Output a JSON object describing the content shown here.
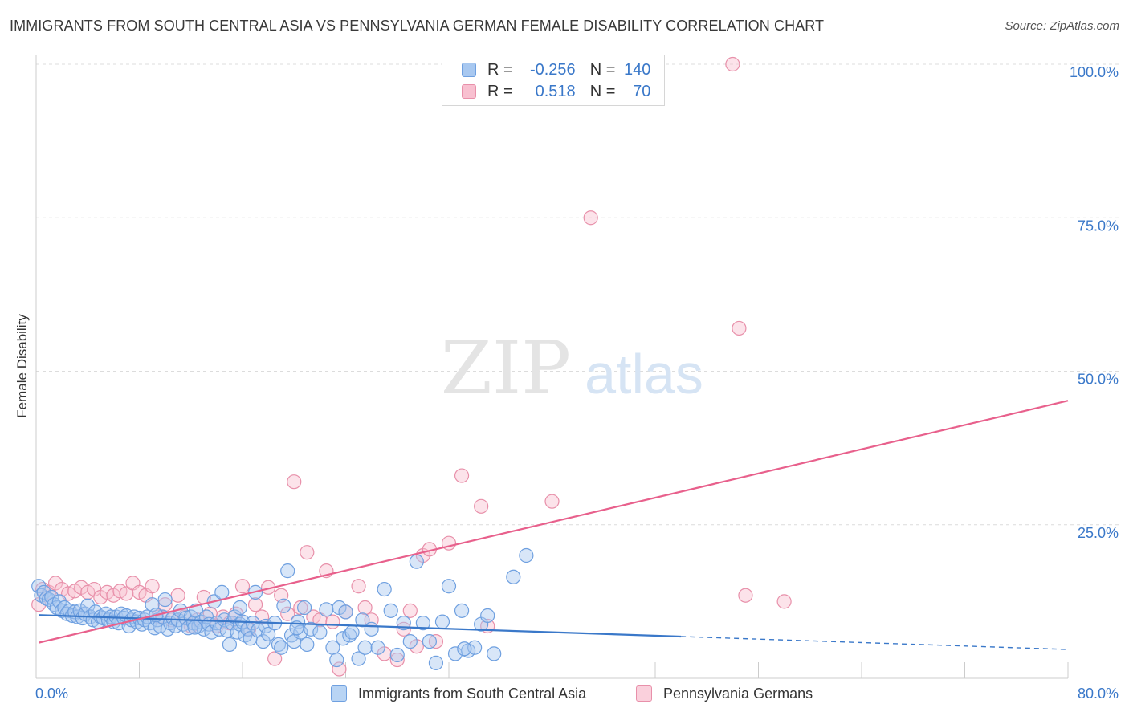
{
  "header": {
    "title": "IMMIGRANTS FROM SOUTH CENTRAL ASIA VS PENNSYLVANIA GERMAN FEMALE DISABILITY CORRELATION CHART",
    "source": "Source: ZipAtlas.com"
  },
  "watermark": {
    "zip": "ZIP",
    "atlas": "atlas"
  },
  "legend": {
    "r_label": "R =",
    "n_label": "N =",
    "rows": [
      {
        "r": "-0.256",
        "n": "140",
        "color": "#a8c8f0",
        "border": "#6fa0e0"
      },
      {
        "r": "0.518",
        "n": "70",
        "color": "#f8c0d0",
        "border": "#e890aa"
      }
    ]
  },
  "bottom_legend": [
    {
      "label": "Immigrants from South Central Asia",
      "color": "#b8d4f4",
      "border": "#6fa0e0"
    },
    {
      "label": "Pennsylvania Germans",
      "color": "#fad0dc",
      "border": "#e890aa"
    }
  ],
  "chart_data": {
    "type": "scatter",
    "ylabel": "Female Disability",
    "xlim": [
      0,
      80
    ],
    "ylim": [
      0,
      100
    ],
    "x_ticks": [
      {
        "value": 0,
        "label": "0.0%"
      },
      {
        "value": 80,
        "label": "80.0%"
      }
    ],
    "y_ticks": [
      {
        "value": 25,
        "label": "25.0%"
      },
      {
        "value": 50,
        "label": "50.0%"
      },
      {
        "value": 75,
        "label": "75.0%"
      },
      {
        "value": 100,
        "label": "100.0%"
      }
    ],
    "grid": "horizontal dashed",
    "colors": {
      "blue": "#3a78c9",
      "pink": "#e8608c",
      "tick_label": "#3a78c9"
    },
    "series": [
      {
        "name": "Immigrants from South Central Asia",
        "color": "#7aa8e8",
        "trend": {
          "x0": 0.2,
          "y0": 10.3,
          "x1": 50,
          "y1": 6.8,
          "dashed_to_x": 80,
          "dashed_to_y": 4.7
        },
        "points": [
          [
            0.2,
            15
          ],
          [
            0.4,
            13.5
          ],
          [
            0.6,
            14
          ],
          [
            0.8,
            13
          ],
          [
            1,
            12.8
          ],
          [
            1.2,
            13.2
          ],
          [
            1.4,
            12
          ],
          [
            1.6,
            11.5
          ],
          [
            1.8,
            12.5
          ],
          [
            2,
            11
          ],
          [
            2.2,
            11.5
          ],
          [
            2.4,
            10.5
          ],
          [
            2.6,
            11
          ],
          [
            2.8,
            10.2
          ],
          [
            3,
            10.8
          ],
          [
            3.2,
            10
          ],
          [
            3.4,
            11
          ],
          [
            3.6,
            9.8
          ],
          [
            3.8,
            10.5
          ],
          [
            4,
            11.8
          ],
          [
            4.2,
            10
          ],
          [
            4.4,
            9.5
          ],
          [
            4.6,
            10.8
          ],
          [
            4.8,
            9.2
          ],
          [
            5,
            10
          ],
          [
            5.2,
            9.8
          ],
          [
            5.4,
            10.5
          ],
          [
            5.6,
            9.5
          ],
          [
            5.8,
            10
          ],
          [
            6,
            9.2
          ],
          [
            6.2,
            10
          ],
          [
            6.4,
            9
          ],
          [
            6.6,
            10.5
          ],
          [
            6.8,
            9.8
          ],
          [
            7,
            10.2
          ],
          [
            7.2,
            8.5
          ],
          [
            7.4,
            9.5
          ],
          [
            7.6,
            10
          ],
          [
            7.8,
            9.2
          ],
          [
            8,
            9.8
          ],
          [
            8.2,
            8.8
          ],
          [
            8.4,
            9.5
          ],
          [
            8.6,
            10
          ],
          [
            8.8,
            9
          ],
          [
            9,
            12
          ],
          [
            9.2,
            8.2
          ],
          [
            9.4,
            9.5
          ],
          [
            9.6,
            8.5
          ],
          [
            9.8,
            10
          ],
          [
            10,
            12.8
          ],
          [
            10.2,
            8
          ],
          [
            10.4,
            9
          ],
          [
            10.6,
            9.8
          ],
          [
            10.8,
            8.5
          ],
          [
            11,
            9.5
          ],
          [
            11.2,
            11
          ],
          [
            11.4,
            8.8
          ],
          [
            11.6,
            9.8
          ],
          [
            11.8,
            8.2
          ],
          [
            12,
            10
          ],
          [
            12.2,
            9
          ],
          [
            12.4,
            11
          ],
          [
            12.6,
            8.5
          ],
          [
            12.8,
            9.2
          ],
          [
            13,
            8
          ],
          [
            13.2,
            10
          ],
          [
            13.4,
            8.8
          ],
          [
            13.6,
            7.5
          ],
          [
            13.8,
            12.5
          ],
          [
            14,
            9
          ],
          [
            14.2,
            8
          ],
          [
            14.4,
            14
          ],
          [
            14.6,
            9.5
          ],
          [
            14.8,
            7.8
          ],
          [
            15,
            5.5
          ],
          [
            15.2,
            9
          ],
          [
            15.4,
            10
          ],
          [
            15.6,
            7.5
          ],
          [
            15.8,
            8.8
          ],
          [
            16,
            9.2
          ],
          [
            16.2,
            7
          ],
          [
            16.4,
            8
          ],
          [
            16.6,
            6.5
          ],
          [
            16.8,
            9
          ],
          [
            17,
            14
          ],
          [
            17.2,
            7.8
          ],
          [
            17.6,
            6
          ],
          [
            17.8,
            8.5
          ],
          [
            18,
            7.2
          ],
          [
            18.5,
            9
          ],
          [
            18.8,
            5.5
          ],
          [
            19,
            5
          ],
          [
            19.2,
            11.8
          ],
          [
            19.5,
            17.5
          ],
          [
            19.8,
            7
          ],
          [
            20,
            6
          ],
          [
            20.3,
            9.2
          ],
          [
            20.5,
            7.5
          ],
          [
            20.8,
            11.5
          ],
          [
            21,
            5.5
          ],
          [
            21.3,
            8
          ],
          [
            22,
            7.5
          ],
          [
            22.5,
            11.2
          ],
          [
            23,
            5
          ],
          [
            23.3,
            3
          ],
          [
            23.5,
            11.5
          ],
          [
            23.8,
            6.5
          ],
          [
            24,
            10.8
          ],
          [
            24.3,
            7
          ],
          [
            24.5,
            7.5
          ],
          [
            25,
            3.2
          ],
          [
            25.3,
            9.5
          ],
          [
            25.5,
            5
          ],
          [
            26,
            8
          ],
          [
            26.5,
            5
          ],
          [
            27,
            14.5
          ],
          [
            27.5,
            11
          ],
          [
            28,
            3.8
          ],
          [
            28.5,
            9
          ],
          [
            29,
            6
          ],
          [
            29.5,
            19
          ],
          [
            30,
            9
          ],
          [
            30.5,
            6
          ],
          [
            31,
            2.5
          ],
          [
            31.5,
            9.2
          ],
          [
            32,
            15
          ],
          [
            32.5,
            4
          ],
          [
            33,
            11
          ],
          [
            33.5,
            4.5
          ],
          [
            34,
            5
          ],
          [
            34.5,
            8.8
          ],
          [
            35,
            10.2
          ],
          [
            35.5,
            4
          ],
          [
            37,
            16.5
          ],
          [
            38,
            20
          ],
          [
            33.2,
            4.8
          ],
          [
            20.2,
            8.2
          ],
          [
            15.8,
            11.5
          ],
          [
            12.3,
            8.3
          ],
          [
            9.3,
            10.3
          ]
        ]
      },
      {
        "name": "Pennsylvania Germans",
        "color": "#f0a0b8",
        "trend": {
          "x0": 0.2,
          "y0": 5.8,
          "x1": 80,
          "y1": 45.2
        },
        "points": [
          [
            0.2,
            12
          ],
          [
            0.5,
            14.5
          ],
          [
            1,
            14
          ],
          [
            1.5,
            15.5
          ],
          [
            2,
            14.5
          ],
          [
            2.5,
            13.8
          ],
          [
            3,
            14.2
          ],
          [
            3.5,
            14.8
          ],
          [
            4,
            14
          ],
          [
            4.5,
            14.5
          ],
          [
            5,
            13.2
          ],
          [
            5.5,
            14
          ],
          [
            6,
            13.5
          ],
          [
            6.5,
            14.2
          ],
          [
            7,
            13.8
          ],
          [
            7.5,
            15.5
          ],
          [
            8,
            14
          ],
          [
            8.5,
            13.5
          ],
          [
            9,
            15
          ],
          [
            9.5,
            10
          ],
          [
            10,
            12
          ],
          [
            10.5,
            9.5
          ],
          [
            11,
            13.5
          ],
          [
            11.5,
            10
          ],
          [
            12,
            8.5
          ],
          [
            12.5,
            9.5
          ],
          [
            13,
            13.2
          ],
          [
            13.5,
            10.5
          ],
          [
            14,
            8.5
          ],
          [
            14.5,
            10
          ],
          [
            15,
            9
          ],
          [
            15.5,
            10.5
          ],
          [
            16,
            15
          ],
          [
            16.5,
            8
          ],
          [
            17,
            12
          ],
          [
            17.5,
            10
          ],
          [
            18,
            14.8
          ],
          [
            18.5,
            3.2
          ],
          [
            19,
            13.5
          ],
          [
            19.5,
            10.5
          ],
          [
            20,
            32
          ],
          [
            20.5,
            11.5
          ],
          [
            21,
            20.5
          ],
          [
            21.5,
            10
          ],
          [
            22,
            9.5
          ],
          [
            22.5,
            17.5
          ],
          [
            23,
            9.2
          ],
          [
            23.5,
            1.5
          ],
          [
            24,
            10.8
          ],
          [
            25,
            15
          ],
          [
            25.5,
            11.5
          ],
          [
            26,
            9.5
          ],
          [
            27,
            4
          ],
          [
            28,
            3
          ],
          [
            28.5,
            8
          ],
          [
            29,
            11
          ],
          [
            29.5,
            5.2
          ],
          [
            30,
            20
          ],
          [
            30.5,
            21
          ],
          [
            31,
            6
          ],
          [
            32,
            22
          ],
          [
            33,
            33
          ],
          [
            34.5,
            28
          ],
          [
            35,
            8.5
          ],
          [
            40,
            28.8
          ],
          [
            43,
            75
          ],
          [
            54,
            100
          ],
          [
            54.5,
            57
          ],
          [
            55,
            13.5
          ],
          [
            58,
            12.5
          ]
        ]
      }
    ]
  }
}
